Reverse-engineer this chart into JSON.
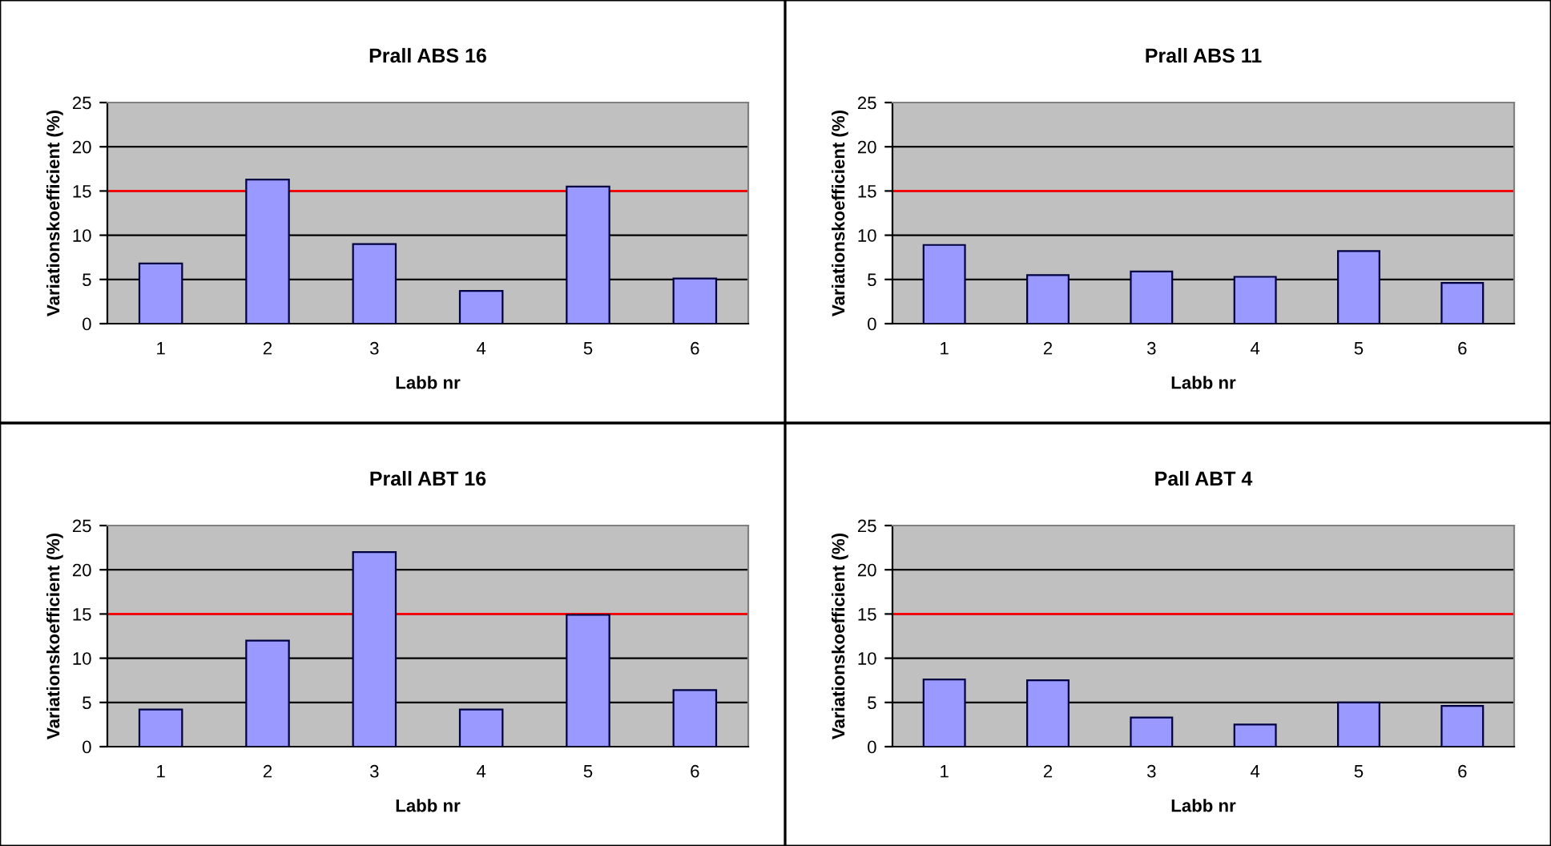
{
  "chart_data": [
    {
      "type": "bar",
      "title": "Prall ABS 16",
      "xlabel": "Labb nr",
      "ylabel": "Variationskoefficient (%)",
      "categories": [
        "1",
        "2",
        "3",
        "4",
        "5",
        "6"
      ],
      "values": [
        6.8,
        16.3,
        9.0,
        3.7,
        15.5,
        5.1
      ],
      "color": "#9999ff",
      "ylim": [
        0,
        25
      ],
      "yticks": [
        0,
        5,
        10,
        15,
        20,
        25
      ],
      "grid": "y",
      "ref_lines": [
        {
          "axis": "y",
          "value": 15,
          "color": "#ff0000"
        }
      ]
    },
    {
      "type": "bar",
      "title": "Prall ABS 11",
      "xlabel": "Labb nr",
      "ylabel": "Variationskoefficient (%)",
      "categories": [
        "1",
        "2",
        "3",
        "4",
        "5",
        "6"
      ],
      "values": [
        8.9,
        5.5,
        5.9,
        5.3,
        8.2,
        4.6
      ],
      "color": "#9999ff",
      "ylim": [
        0,
        25
      ],
      "yticks": [
        0,
        5,
        10,
        15,
        20,
        25
      ],
      "grid": "y",
      "ref_lines": [
        {
          "axis": "y",
          "value": 15,
          "color": "#ff0000"
        }
      ]
    },
    {
      "type": "bar",
      "title": "Prall ABT 16",
      "xlabel": "Labb nr",
      "ylabel": "Variationskoefficient (%)",
      "categories": [
        "1",
        "2",
        "3",
        "4",
        "5",
        "6"
      ],
      "values": [
        4.2,
        12.0,
        22.0,
        4.2,
        14.9,
        6.4
      ],
      "color": "#9999ff",
      "ylim": [
        0,
        25
      ],
      "yticks": [
        0,
        5,
        10,
        15,
        20,
        25
      ],
      "grid": "y",
      "ref_lines": [
        {
          "axis": "y",
          "value": 15,
          "color": "#ff0000"
        }
      ]
    },
    {
      "type": "bar",
      "title": "Pall ABT 4",
      "xlabel": "Labb nr",
      "ylabel": "Variationskoefficient (%)",
      "categories": [
        "1",
        "2",
        "3",
        "4",
        "5",
        "6"
      ],
      "values": [
        7.6,
        7.5,
        3.3,
        2.5,
        5.0,
        4.6
      ],
      "color": "#9999ff",
      "ylim": [
        0,
        25
      ],
      "yticks": [
        0,
        5,
        10,
        15,
        20,
        25
      ],
      "grid": "y",
      "ref_lines": [
        {
          "axis": "y",
          "value": 15,
          "color": "#ff0000"
        }
      ]
    }
  ]
}
